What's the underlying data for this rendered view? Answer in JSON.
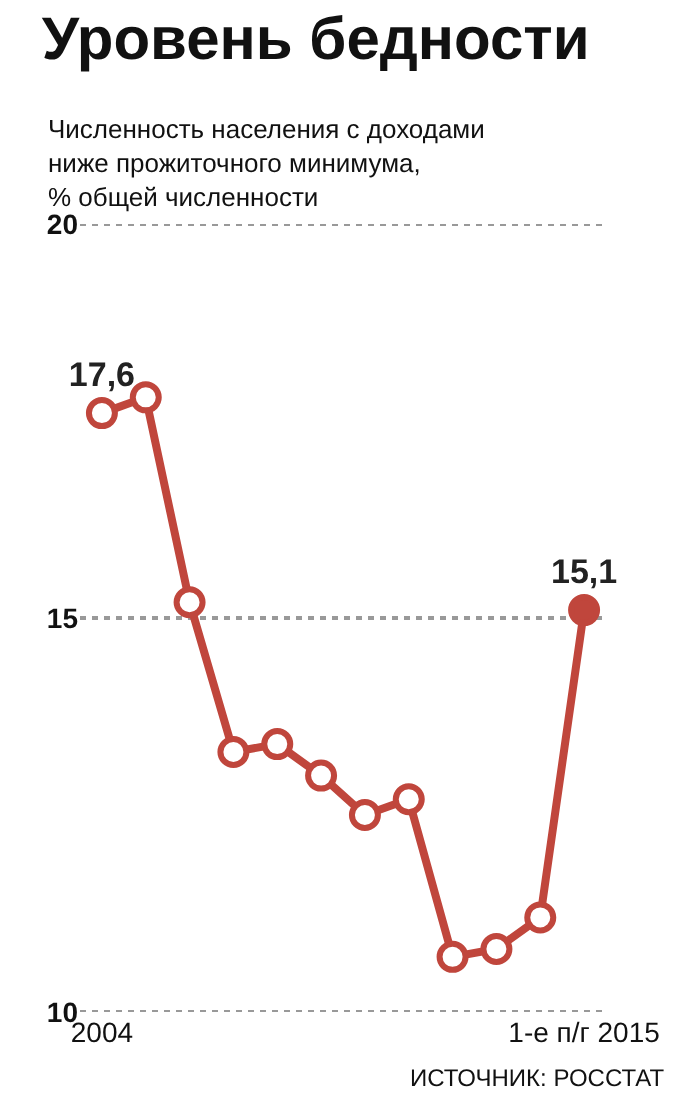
{
  "chart_data": {
    "type": "line",
    "title": "Уровень бедности",
    "subtitle": "Численность населения с доходами ниже прожиточного минимума, % общей численности",
    "categories": [
      "2004",
      null,
      null,
      null,
      null,
      null,
      null,
      null,
      null,
      null,
      null,
      "1-е п/г 2015"
    ],
    "series": [
      {
        "color": "#c0463c",
        "colors": [
          "#ffffff",
          "#ffffff",
          "#ffffff",
          "#ffffff",
          "#ffffff",
          "#ffffff",
          "#ffffff",
          "#ffffff",
          "#ffffff",
          "#ffffff",
          "#ffffff",
          "#c0463c"
        ],
        "values": [
          17.6,
          17.8,
          15.2,
          13.3,
          13.4,
          13.0,
          12.5,
          12.7,
          10.7,
          10.8,
          11.2,
          15.1
        ],
        "value_labels": [
          "17,6",
          null,
          null,
          null,
          null,
          null,
          null,
          null,
          null,
          null,
          null,
          "15,1"
        ]
      }
    ],
    "ylim": [
      10,
      20
    ],
    "yticks": [
      10,
      15,
      20
    ],
    "grid": "y",
    "marker": "circle",
    "line_style": "solid",
    "annotations": [
      "ИСТОЧНИК: РОССТАТ"
    ]
  }
}
